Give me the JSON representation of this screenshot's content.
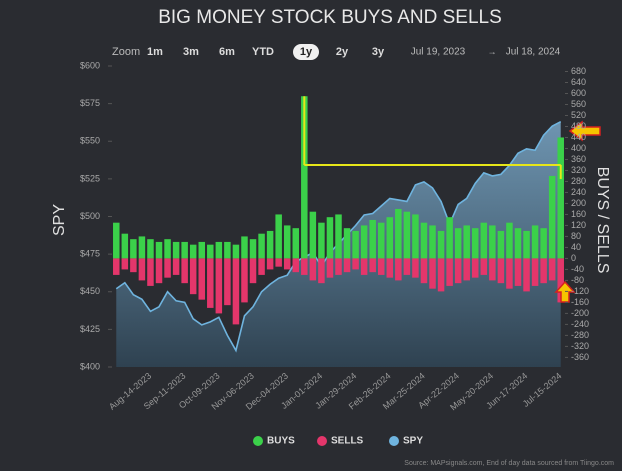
{
  "chart_data": {
    "type": "combo",
    "title": "BIG MONEY STOCK BUYS AND SELLS",
    "y_label": "SPY",
    "y2_label": "BUYS / SELLS",
    "zoom_label": "Zoom",
    "zoom_options": [
      "1m",
      "3m",
      "6m",
      "YTD",
      "1y",
      "2y",
      "3y"
    ],
    "zoom_selected": "1y",
    "range_from": "Jul 19, 2023",
    "range_separator": "→",
    "range_to": "Jul 18, 2024",
    "source": "Source: MAPsignals.com, End of day data sourced from Tiingo.com",
    "categories": [
      null,
      null,
      null,
      null,
      "Aug-14-2023",
      null,
      null,
      null,
      "Sep-11-2023",
      null,
      null,
      null,
      "Oct-09-2023",
      null,
      null,
      null,
      "Nov-06-2023",
      null,
      null,
      null,
      "Dec-04-2023",
      null,
      null,
      null,
      "Jan-01-2024",
      null,
      null,
      null,
      "Jan-29-2024",
      null,
      null,
      null,
      "Feb-26-2024",
      null,
      null,
      null,
      "Mar-25-2024",
      null,
      null,
      null,
      "Apr-22-2024",
      null,
      null,
      null,
      "May-20-2024",
      null,
      null,
      null,
      "Jun-17-2024",
      null,
      null,
      null,
      "Jul-15-2024"
    ],
    "series": [
      {
        "name": "BUYS",
        "type": "bar",
        "axis": "y2",
        "color": "#3bd14a",
        "values": [
          130,
          90,
          70,
          80,
          70,
          60,
          70,
          60,
          60,
          50,
          60,
          50,
          60,
          60,
          50,
          80,
          70,
          90,
          100,
          160,
          120,
          110,
          590,
          170,
          130,
          150,
          160,
          110,
          100,
          120,
          140,
          130,
          150,
          180,
          170,
          160,
          130,
          120,
          100,
          150,
          110,
          120,
          110,
          130,
          120,
          100,
          130,
          110,
          100,
          120,
          110,
          300,
          440
        ]
      },
      {
        "name": "SELLS",
        "type": "bar",
        "axis": "y2",
        "color": "#e4366b",
        "values": [
          -60,
          -40,
          -50,
          -80,
          -100,
          -90,
          -70,
          -60,
          -90,
          -130,
          -150,
          -180,
          -200,
          -170,
          -240,
          -160,
          -90,
          -60,
          -40,
          -30,
          -40,
          -50,
          -60,
          -80,
          -90,
          -70,
          -60,
          -50,
          -40,
          -60,
          -50,
          -60,
          -70,
          -80,
          -60,
          -70,
          -90,
          -110,
          -120,
          -100,
          -90,
          -80,
          -70,
          -60,
          -80,
          -90,
          -110,
          -100,
          -120,
          -100,
          -90,
          -80,
          -160
        ]
      },
      {
        "name": "SPY",
        "type": "area",
        "color": "#6fb4df",
        "values": [
          452,
          456,
          448,
          445,
          437,
          440,
          450,
          444,
          443,
          432,
          428,
          430,
          433,
          421,
          411,
          434,
          440,
          450,
          455,
          459,
          461,
          470,
          473,
          476,
          467,
          476,
          482,
          488,
          494,
          501,
          502,
          507,
          512,
          511,
          510,
          521,
          523,
          519,
          510,
          495,
          508,
          512,
          522,
          529,
          527,
          528,
          534,
          542,
          545,
          544,
          554,
          560,
          563
        ]
      }
    ],
    "reference_line": {
      "value": 340,
      "axis": "y2",
      "color": "#e6e619"
    },
    "ylim": [
      400,
      600
    ],
    "yticks": [
      {
        "value": 400,
        "label": "$400"
      },
      {
        "value": 425,
        "label": "$425"
      },
      {
        "value": 450,
        "label": "$450"
      },
      {
        "value": 475,
        "label": "$475"
      },
      {
        "value": 500,
        "label": "$500"
      },
      {
        "value": 525,
        "label": "$525"
      },
      {
        "value": 550,
        "label": "$550"
      },
      {
        "value": 575,
        "label": "$575"
      },
      {
        "value": 600,
        "label": "$600"
      }
    ],
    "y2lim": [
      -395,
      700
    ],
    "y2ticks": [
      -360,
      -320,
      -280,
      -240,
      -200,
      -160,
      -120,
      -80,
      -40,
      0,
      40,
      80,
      120,
      160,
      200,
      240,
      280,
      320,
      360,
      400,
      440,
      480,
      520,
      560,
      600,
      640,
      680
    ],
    "grid": false
  }
}
